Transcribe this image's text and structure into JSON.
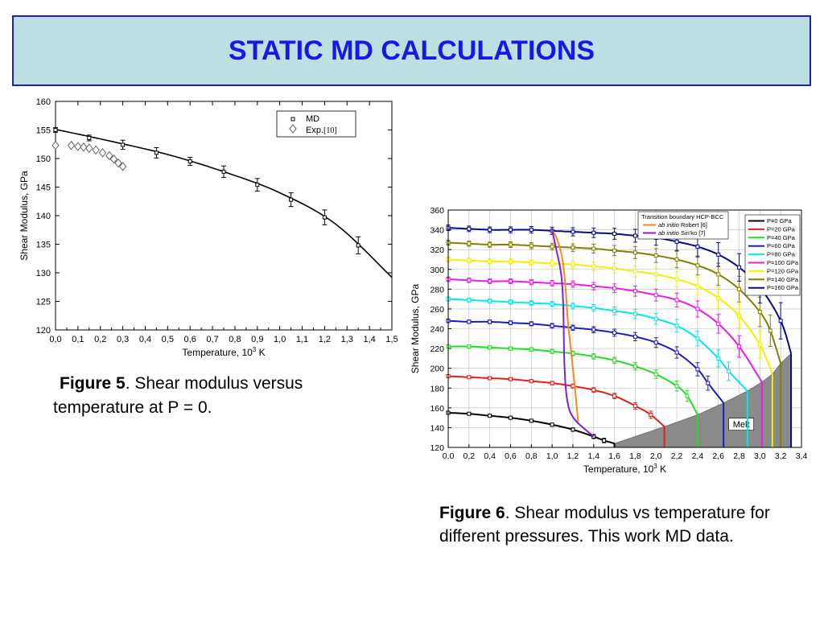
{
  "slide": {
    "title": "STATIC MD CALCULATIONS",
    "figure5_caption_bold": "Figure 5",
    "figure5_caption_text": ". Shear modulus versus temperature at P = 0.",
    "figure6_caption_bold": "Figure 6",
    "figure6_caption_text": ". Shear modulus vs temperature for different pressures. This work MD data."
  },
  "chart_data": [
    {
      "type": "scatter",
      "xlabel": "Temperature, 10³ K",
      "ylabel": "Shear Modulus, GPa",
      "xlim": [
        0,
        1.5
      ],
      "ylim": [
        120,
        160
      ],
      "x_ticks": [
        "0,0",
        "0,1",
        "0,2",
        "0,3",
        "0,4",
        "0,5",
        "0,6",
        "0,7",
        "0,8",
        "0,9",
        "1,0",
        "1,1",
        "1,2",
        "1,3",
        "1,4",
        "1,5"
      ],
      "y_ticks": [
        "120",
        "125",
        "130",
        "135",
        "140",
        "145",
        "150",
        "155",
        "160"
      ],
      "legend_position": "top-right",
      "grid": false,
      "legend": [
        "MD",
        "Exp."
      ],
      "legend_ref": "[10]",
      "series": [
        {
          "name": "MD",
          "marker": "square",
          "color": "#000000",
          "x": [
            0,
            0.15,
            0.3,
            0.45,
            0.6,
            0.75,
            0.9,
            1.05,
            1.2,
            1.35
          ],
          "y": [
            155,
            153.6,
            152.4,
            151.0,
            149.5,
            147.7,
            145.4,
            142.8,
            139.7,
            134.8
          ],
          "err": [
            0.4,
            0.5,
            0.8,
            0.9,
            0.7,
            1.0,
            1.1,
            1.2,
            1.3,
            1.5
          ]
        },
        {
          "name": "Exp.",
          "marker": "diamond",
          "color": "#555555",
          "x": [
            0,
            0.07,
            0.1,
            0.125,
            0.15,
            0.18,
            0.21,
            0.24,
            0.26,
            0.28,
            0.3
          ],
          "y": [
            152.3,
            152.3,
            152.1,
            152.0,
            151.8,
            151.5,
            151.0,
            150.5,
            149.9,
            149.2,
            148.6
          ]
        }
      ],
      "fit_curve": {
        "x": [
          0,
          0.25,
          0.5,
          0.75,
          1.0,
          1.25,
          1.5
        ],
        "y": [
          155.1,
          153.0,
          150.7,
          147.7,
          144.0,
          138.5,
          129.2
        ]
      }
    },
    {
      "type": "line",
      "xlabel": "Temperature, 10³ K",
      "ylabel": "Shear Modulus, GPa",
      "xlim": [
        0,
        3.4
      ],
      "ylim": [
        120,
        360
      ],
      "x_ticks": [
        "0,0",
        "0,2",
        "0,4",
        "0,6",
        "0,8",
        "1,0",
        "1,2",
        "1,4",
        "1,6",
        "1,8",
        "2,0",
        "2,2",
        "2,4",
        "2,6",
        "2,8",
        "3,0",
        "3,2",
        "3,4"
      ],
      "y_ticks": [
        "120",
        "140",
        "160",
        "180",
        "200",
        "220",
        "240",
        "260",
        "280",
        "300",
        "320",
        "340",
        "360"
      ],
      "legend_position": "top-right",
      "grid": true,
      "melt_label": "Melt",
      "boundary_legend": {
        "title": "Transition boundary HCP-BCC",
        "items": [
          {
            "italic": "ab initio",
            "text": " Robert [6]",
            "color": "#f08a20"
          },
          {
            "italic": "ab initio",
            "text": " Sin'ko [7]",
            "color": "#8020d0"
          }
        ]
      },
      "melt_line": {
        "x": [
          1.6,
          2.08,
          2.4,
          2.65,
          2.88,
          3.02,
          3.12,
          3.2,
          3.3
        ],
        "y": [
          124,
          141,
          153,
          165,
          177,
          186,
          194,
          205,
          215
        ]
      },
      "boundary_robert": {
        "x": [
          1.0,
          1.05,
          1.1,
          1.13,
          1.15,
          1.18,
          1.2,
          1.22,
          1.25
        ],
        "y": [
          340,
          330,
          310,
          280,
          250,
          220,
          200,
          180,
          146
        ]
      },
      "boundary_sinko": {
        "x": [
          1.0,
          1.04,
          1.08,
          1.1,
          1.11,
          1.12,
          1.15,
          1.22,
          1.4
        ],
        "y": [
          340,
          320,
          300,
          280,
          250,
          200,
          165,
          148,
          131
        ]
      },
      "series": [
        {
          "name": "P=0 GPa",
          "color": "#000000",
          "T_melt": 1.6,
          "G_melt": 124,
          "x": [
            0.0,
            0.2,
            0.4,
            0.6,
            0.8,
            1.0,
            1.2,
            1.4,
            1.5
          ],
          "y": [
            155,
            154,
            152,
            150,
            147,
            143,
            138,
            131,
            127
          ]
        },
        {
          "name": "P=20 GPa",
          "color": "#e81c1c",
          "T_melt": 2.08,
          "G_melt": 141,
          "x": [
            0.0,
            0.2,
            0.4,
            0.6,
            0.8,
            1.0,
            1.2,
            1.4,
            1.6,
            1.8,
            1.95
          ],
          "y": [
            192,
            191,
            190,
            189,
            187,
            185,
            182,
            178,
            172,
            162,
            153
          ]
        },
        {
          "name": "P=40 GPa",
          "color": "#22dd22",
          "T_melt": 2.4,
          "G_melt": 153,
          "x": [
            0.0,
            0.2,
            0.4,
            0.6,
            0.8,
            1.0,
            1.2,
            1.4,
            1.6,
            1.8,
            2.0,
            2.2,
            2.3
          ],
          "y": [
            222,
            222,
            221,
            220,
            219,
            217,
            215,
            212,
            208,
            202,
            194,
            182,
            172
          ]
        },
        {
          "name": "P=60 GPa",
          "color": "#1c1cbe",
          "T_melt": 2.65,
          "G_melt": 165,
          "x": [
            0.0,
            0.2,
            0.4,
            0.6,
            0.8,
            1.0,
            1.2,
            1.4,
            1.6,
            1.8,
            2.0,
            2.2,
            2.4,
            2.5
          ],
          "y": [
            248,
            247,
            247,
            246,
            245,
            243,
            241,
            239,
            236,
            232,
            226,
            216,
            199,
            185
          ]
        },
        {
          "name": "P=80 GPa",
          "color": "#00e8e8",
          "T_melt": 2.88,
          "G_melt": 177,
          "x": [
            0.0,
            0.2,
            0.4,
            0.6,
            0.8,
            1.0,
            1.2,
            1.4,
            1.6,
            1.8,
            2.0,
            2.2,
            2.4,
            2.6,
            2.7
          ],
          "y": [
            270,
            269,
            268,
            267,
            266,
            265,
            263,
            261,
            258,
            255,
            250,
            243,
            230,
            210,
            197
          ]
        },
        {
          "name": "P=100 GPa",
          "color": "#e81ce8",
          "T_melt": 3.02,
          "G_melt": 186,
          "x": [
            0.0,
            0.2,
            0.4,
            0.6,
            0.8,
            1.0,
            1.2,
            1.4,
            1.6,
            1.8,
            2.0,
            2.2,
            2.4,
            2.6,
            2.8
          ],
          "y": [
            290,
            289,
            288,
            288,
            287,
            286,
            285,
            283,
            281,
            278,
            274,
            269,
            260,
            245,
            222
          ]
        },
        {
          "name": "P=120 GPa",
          "color": "#f0f000",
          "T_melt": 3.12,
          "G_melt": 194,
          "x": [
            0.0,
            0.2,
            0.4,
            0.6,
            0.8,
            1.0,
            1.2,
            1.4,
            1.6,
            1.8,
            2.0,
            2.2,
            2.4,
            2.6,
            2.8,
            3.0
          ],
          "y": [
            310,
            309,
            308,
            308,
            307,
            306,
            305,
            303,
            301,
            298,
            295,
            290,
            283,
            271,
            253,
            224
          ]
        },
        {
          "name": "P=140 GPa",
          "color": "#808000",
          "T_melt": 3.2,
          "G_melt": 205,
          "x": [
            0.0,
            0.2,
            0.4,
            0.6,
            0.8,
            1.0,
            1.2,
            1.4,
            1.6,
            1.8,
            2.0,
            2.2,
            2.4,
            2.6,
            2.8,
            3.0,
            3.1
          ],
          "y": [
            327,
            326,
            325,
            325,
            324,
            323,
            322,
            321,
            319,
            317,
            314,
            310,
            304,
            295,
            280,
            257,
            238
          ]
        },
        {
          "name": "P=160 GPa",
          "color": "#0a0a80",
          "T_melt": 3.3,
          "G_melt": 215,
          "x": [
            0.0,
            0.2,
            0.4,
            0.6,
            0.8,
            1.0,
            1.2,
            1.4,
            1.6,
            1.8,
            2.0,
            2.2,
            2.4,
            2.6,
            2.8,
            3.0,
            3.2
          ],
          "y": [
            342,
            341,
            340,
            340,
            340,
            339,
            338,
            337,
            336,
            334,
            332,
            328,
            323,
            315,
            302,
            282,
            248
          ]
        }
      ]
    }
  ]
}
